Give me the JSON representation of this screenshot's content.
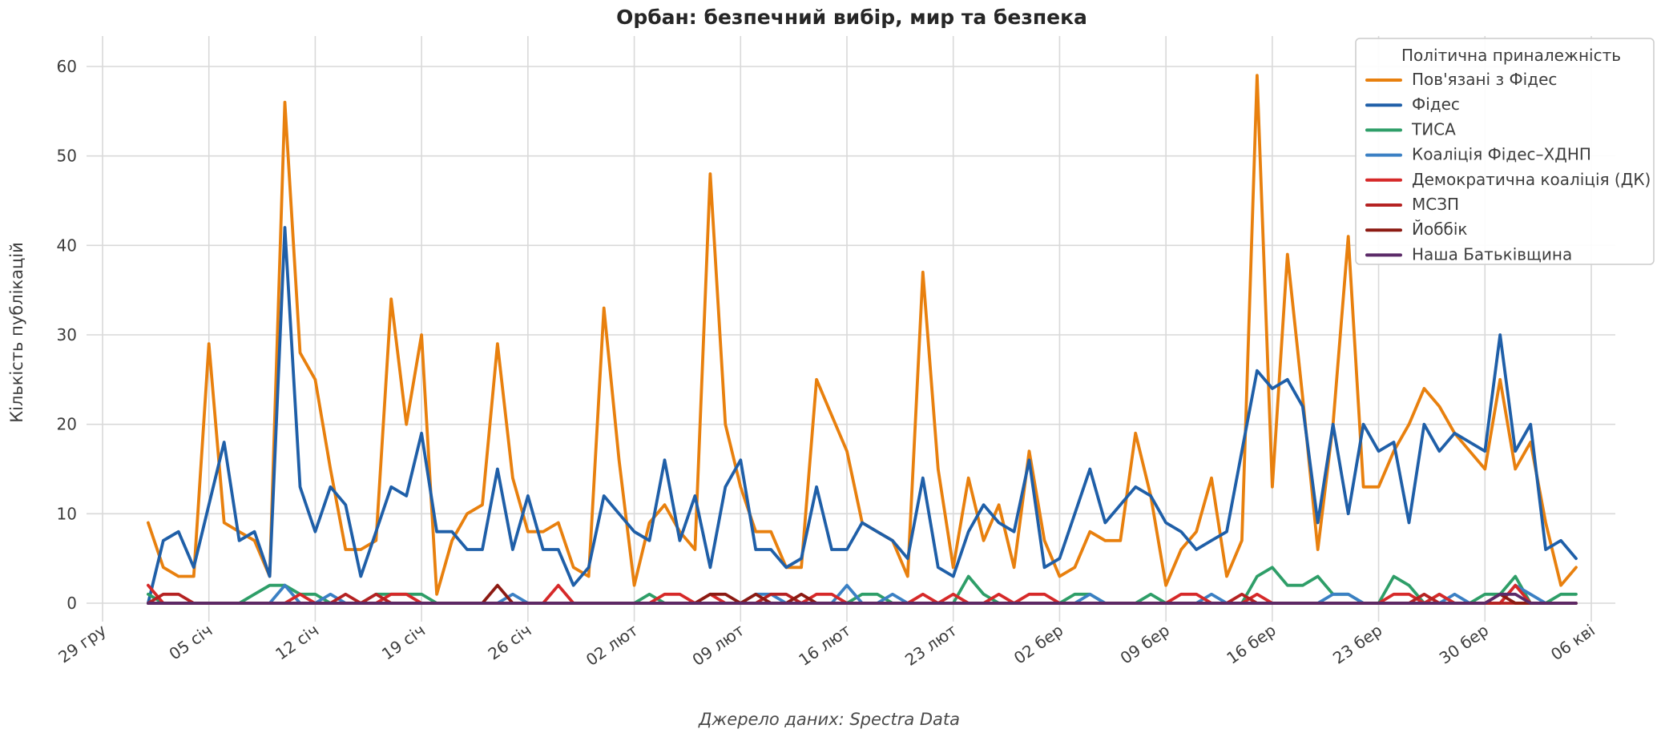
{
  "title": "Орбан: безпечний вибір, мир та безпека",
  "footer": "Джерело даних: Spectra Data",
  "chart_data": {
    "type": "line",
    "title": "Орбан: безпечний вибір, мир та безпека",
    "xlabel": "",
    "ylabel": "Кількість публікацій",
    "source_note": "Джерело даних: Spectra Data",
    "ylim": [
      0,
      60
    ],
    "yticks": [
      0,
      10,
      20,
      30,
      40,
      50,
      60
    ],
    "grid": true,
    "legend_title": "Політична приналежність",
    "legend_position": "upper right",
    "x_tick_labels": [
      "29 гру",
      "05 січ",
      "12 січ",
      "19 січ",
      "26 січ",
      "02 лют",
      "09 лют",
      "16 лют",
      "23 лют",
      "02 бер",
      "09 бер",
      "16 бер",
      "23 бер",
      "30 бер",
      "06 кві"
    ],
    "x_tick_day_offsets": [
      0,
      7,
      14,
      21,
      28,
      35,
      42,
      49,
      56,
      63,
      70,
      77,
      84,
      91,
      98
    ],
    "series_start_day_offset": 3,
    "series": [
      {
        "name": "Пов'язані з Фідес",
        "color": "#e8800e",
        "values": [
          9,
          4,
          3,
          3,
          29,
          9,
          8,
          7,
          3,
          56,
          28,
          25,
          15,
          6,
          6,
          7,
          34,
          20,
          30,
          1,
          7,
          10,
          11,
          29,
          14,
          8,
          8,
          9,
          4,
          3,
          33,
          16,
          2,
          9,
          11,
          8,
          6,
          48,
          20,
          13,
          8,
          8,
          4,
          4,
          25,
          21,
          17,
          9,
          8,
          7,
          3,
          37,
          15,
          4,
          14,
          7,
          11,
          4,
          17,
          7,
          3,
          4,
          8,
          7,
          7,
          19,
          12,
          2,
          6,
          8,
          14,
          3,
          7,
          59,
          13,
          39,
          23,
          6,
          20,
          41,
          13,
          13,
          17,
          20,
          24,
          22,
          19,
          17,
          15,
          25,
          15,
          18,
          9,
          2,
          4
        ]
      },
      {
        "name": "Фідес",
        "color": "#1f5fa8",
        "values": [
          0,
          7,
          8,
          4,
          11,
          18,
          7,
          8,
          3,
          42,
          13,
          8,
          13,
          11,
          3,
          8,
          13,
          12,
          19,
          8,
          8,
          6,
          6,
          15,
          6,
          12,
          6,
          6,
          2,
          4,
          12,
          10,
          8,
          7,
          16,
          7,
          12,
          4,
          13,
          16,
          6,
          6,
          4,
          5,
          13,
          6,
          6,
          9,
          8,
          7,
          5,
          14,
          4,
          3,
          8,
          11,
          9,
          8,
          16,
          4,
          5,
          10,
          15,
          9,
          11,
          13,
          12,
          9,
          8,
          6,
          7,
          8,
          17,
          26,
          24,
          25,
          22,
          9,
          20,
          10,
          20,
          17,
          18,
          9,
          20,
          17,
          19,
          18,
          17,
          30,
          17,
          20,
          6,
          7,
          5
        ]
      },
      {
        "name": "ТИСА",
        "color": "#2e9e68",
        "values": [
          1,
          0,
          0,
          0,
          0,
          0,
          0,
          1,
          2,
          2,
          1,
          1,
          0,
          0,
          0,
          1,
          1,
          1,
          1,
          0,
          0,
          0,
          0,
          0,
          0,
          0,
          0,
          0,
          0,
          0,
          0,
          0,
          0,
          1,
          0,
          0,
          0,
          0,
          0,
          0,
          0,
          0,
          0,
          0,
          0,
          0,
          0,
          1,
          1,
          0,
          0,
          0,
          0,
          0,
          3,
          1,
          0,
          0,
          0,
          0,
          0,
          1,
          1,
          0,
          0,
          0,
          1,
          0,
          0,
          0,
          0,
          0,
          0,
          3,
          4,
          2,
          2,
          3,
          1,
          1,
          0,
          0,
          3,
          2,
          0,
          1,
          0,
          0,
          1,
          1,
          3,
          0,
          0,
          1,
          1
        ]
      },
      {
        "name": "Коаліція Фідес–ХДНП",
        "color": "#3b80c4",
        "values": [
          0,
          0,
          0,
          0,
          0,
          0,
          0,
          0,
          0,
          2,
          0,
          0,
          1,
          0,
          0,
          0,
          0,
          0,
          0,
          0,
          0,
          0,
          0,
          0,
          1,
          0,
          0,
          0,
          0,
          0,
          0,
          0,
          0,
          0,
          0,
          0,
          0,
          0,
          0,
          0,
          1,
          1,
          0,
          0,
          0,
          0,
          2,
          0,
          0,
          1,
          0,
          0,
          0,
          0,
          0,
          0,
          0,
          0,
          0,
          0,
          0,
          0,
          1,
          0,
          0,
          0,
          0,
          0,
          0,
          0,
          1,
          0,
          0,
          0,
          0,
          0,
          0,
          0,
          1,
          1,
          0,
          0,
          0,
          0,
          0,
          0,
          1,
          0,
          0,
          0,
          2,
          1,
          0,
          0,
          0
        ]
      },
      {
        "name": "Демократична коаліція (ДК)",
        "color": "#d62929",
        "values": [
          2,
          0,
          0,
          0,
          0,
          0,
          0,
          0,
          0,
          0,
          1,
          0,
          0,
          0,
          0,
          0,
          1,
          1,
          0,
          0,
          0,
          0,
          0,
          0,
          0,
          0,
          0,
          2,
          0,
          0,
          0,
          0,
          0,
          0,
          1,
          1,
          0,
          1,
          0,
          0,
          0,
          0,
          0,
          0,
          1,
          1,
          0,
          0,
          0,
          0,
          0,
          1,
          0,
          1,
          0,
          0,
          1,
          0,
          1,
          1,
          0,
          0,
          0,
          0,
          0,
          0,
          0,
          0,
          1,
          1,
          0,
          0,
          0,
          1,
          0,
          0,
          0,
          0,
          0,
          0,
          0,
          0,
          1,
          1,
          0,
          1,
          0,
          0,
          0,
          0,
          2,
          0,
          0,
          0,
          0
        ]
      },
      {
        "name": "МСЗП",
        "color": "#b52222",
        "values": [
          0,
          1,
          1,
          0,
          0,
          0,
          0,
          0,
          0,
          0,
          0,
          0,
          0,
          1,
          0,
          1,
          0,
          0,
          0,
          0,
          0,
          0,
          0,
          0,
          0,
          0,
          0,
          0,
          0,
          0,
          0,
          0,
          0,
          0,
          0,
          0,
          0,
          0,
          0,
          0,
          0,
          1,
          1,
          0,
          0,
          0,
          0,
          0,
          0,
          0,
          0,
          0,
          0,
          0,
          0,
          0,
          0,
          0,
          0,
          0,
          0,
          0,
          0,
          0,
          0,
          0,
          0,
          0,
          0,
          0,
          0,
          0,
          1,
          0,
          0,
          0,
          0,
          0,
          0,
          0,
          0,
          0,
          0,
          0,
          1,
          0,
          0,
          0,
          0,
          0,
          0,
          0,
          0,
          0,
          0
        ]
      },
      {
        "name": "Йоббік",
        "color": "#8c1a12",
        "values": [
          0,
          0,
          0,
          0,
          0,
          0,
          0,
          0,
          0,
          0,
          0,
          0,
          0,
          0,
          0,
          0,
          0,
          0,
          0,
          0,
          0,
          0,
          0,
          2,
          0,
          0,
          0,
          0,
          0,
          0,
          0,
          0,
          0,
          0,
          0,
          0,
          0,
          1,
          1,
          0,
          1,
          0,
          0,
          1,
          0,
          0,
          0,
          0,
          0,
          0,
          0,
          0,
          0,
          0,
          0,
          0,
          0,
          0,
          0,
          0,
          0,
          0,
          0,
          0,
          0,
          0,
          0,
          0,
          0,
          0,
          0,
          0,
          0,
          0,
          0,
          0,
          0,
          0,
          0,
          0,
          0,
          0,
          0,
          0,
          0,
          0,
          0,
          0,
          0,
          1,
          0,
          0,
          0,
          0,
          0
        ]
      },
      {
        "name": "Наша Батьківщина",
        "color": "#5b2a68",
        "values": [
          0,
          0,
          0,
          0,
          0,
          0,
          0,
          0,
          0,
          0,
          0,
          0,
          0,
          0,
          0,
          0,
          0,
          0,
          0,
          0,
          0,
          0,
          0,
          0,
          0,
          0,
          0,
          0,
          0,
          0,
          0,
          0,
          0,
          0,
          0,
          0,
          0,
          0,
          0,
          0,
          0,
          0,
          0,
          0,
          0,
          0,
          0,
          0,
          0,
          0,
          0,
          0,
          0,
          0,
          0,
          0,
          0,
          0,
          0,
          0,
          0,
          0,
          0,
          0,
          0,
          0,
          0,
          0,
          0,
          0,
          0,
          0,
          0,
          0,
          0,
          0,
          0,
          0,
          0,
          0,
          0,
          0,
          0,
          0,
          0,
          0,
          0,
          0,
          0,
          1,
          1,
          0,
          0,
          0,
          0
        ]
      }
    ]
  }
}
